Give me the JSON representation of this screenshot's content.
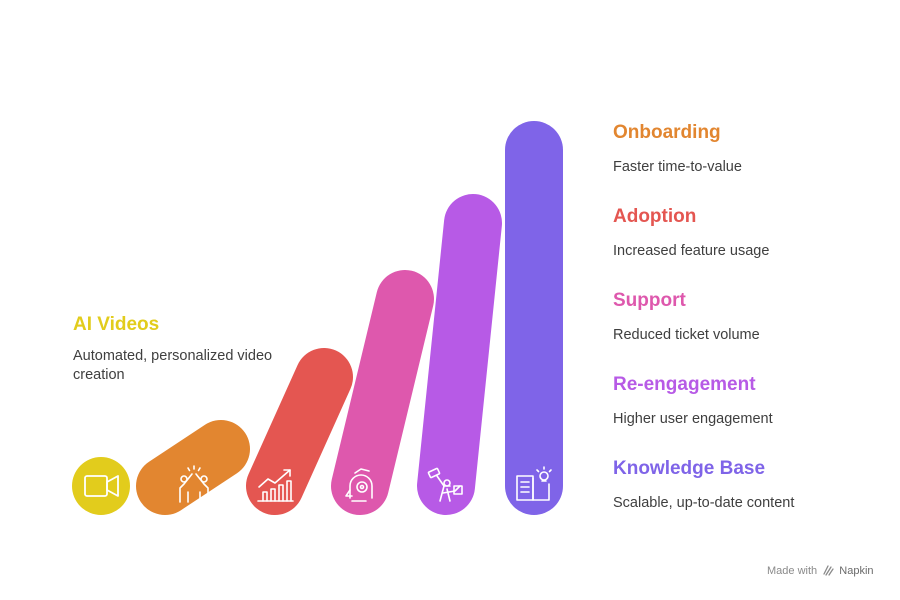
{
  "intro": {
    "title": "AI Videos",
    "description": "Automated, personalized video creation",
    "color": "#e2cc1c",
    "icon": "video-camera-icon"
  },
  "items": [
    {
      "title": "Onboarding",
      "description": "Faster time-to-value",
      "color": "#e28630",
      "icon": "high-five-icon"
    },
    {
      "title": "Adoption",
      "description": "Increased feature usage",
      "color": "#e45651",
      "icon": "growth-chart-icon"
    },
    {
      "title": "Support",
      "description": "Reduced ticket volume",
      "color": "#de58ad",
      "icon": "support-headset-icon"
    },
    {
      "title": "Re-engagement",
      "description": "Higher user engagement",
      "color": "#b75ae6",
      "icon": "celebration-person-icon"
    },
    {
      "title": "Knowledge Base",
      "description": "Scalable, up-to-date content",
      "color": "#7f64e8",
      "icon": "book-idea-icon"
    }
  ],
  "footer": {
    "made_with": "Made with",
    "brand": "Napkin"
  }
}
